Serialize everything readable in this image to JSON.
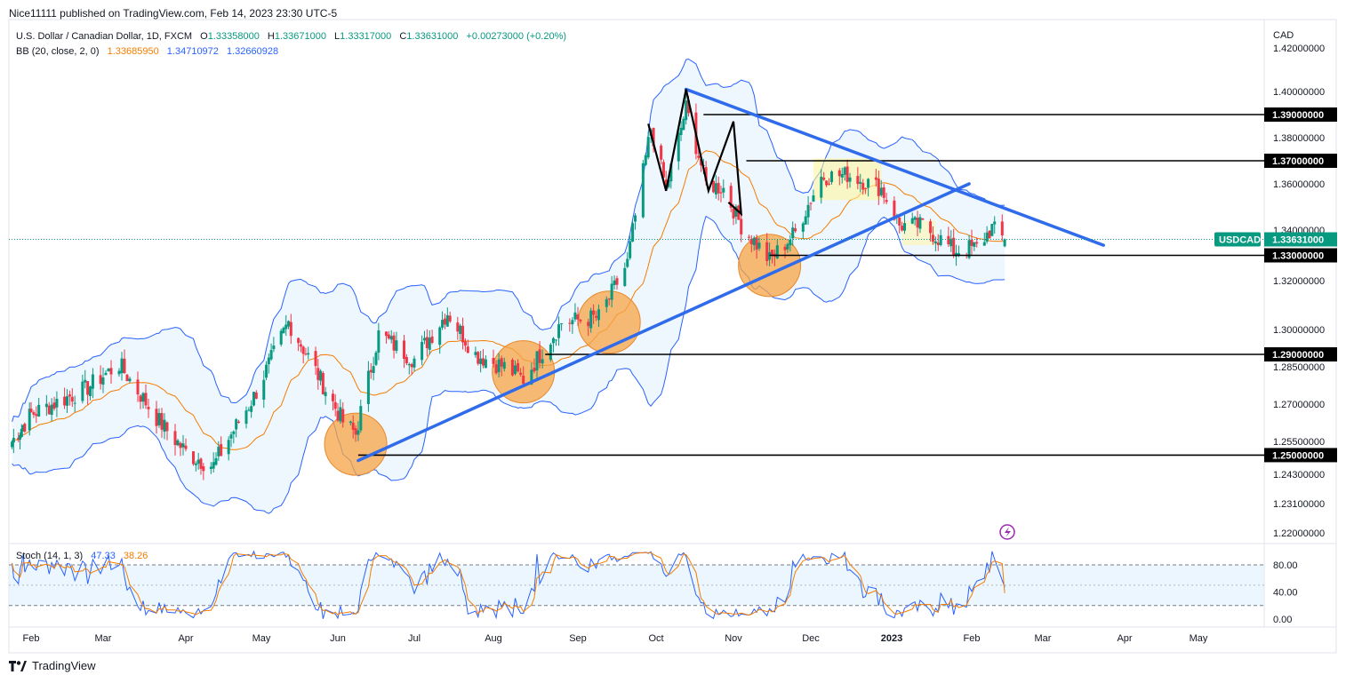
{
  "header": {
    "publisher": "Nice11111 published on TradingView.com, Feb 14, 2023 23:30 UTC-5"
  },
  "legend": {
    "symbol_line": "U.S. Dollar / Canadian Dollar, 1D, FXCM",
    "o_label": "O",
    "o_value": "1.33358000",
    "h_label": "H",
    "h_value": "1.33671000",
    "l_label": "L",
    "l_value": "1.33317000",
    "c_label": "C",
    "c_value": "1.33631000",
    "change": "+0.00273000 (+0.20%)",
    "bb_label": "BB (20, close, 2, 0)",
    "bb_basis": "1.33685950",
    "bb_upper": "1.34710972",
    "bb_lower": "1.32660928",
    "stoch_label": "Stoch (14, 1, 3)",
    "stoch_k": "47.33",
    "stoch_d": "38.26"
  },
  "price_axis": {
    "currency": "CAD",
    "ticks": [
      "1.42000000",
      "1.40000000",
      "1.38000000",
      "1.36000000",
      "1.34000000",
      "1.32000000",
      "1.30000000",
      "1.28500000",
      "1.27000000",
      "1.25500000",
      "1.24300000",
      "1.23100000",
      "1.22000000"
    ],
    "level_labels": [
      "1.39000000",
      "1.37000000",
      "1.33000000",
      "1.29000000",
      "1.25000000"
    ],
    "symbol_tag": "USDCAD",
    "last_price": "1.33631000"
  },
  "stoch_axis": {
    "ticks": [
      "80.00",
      "40.00",
      "0.00"
    ]
  },
  "time_axis": {
    "ticks": [
      "Feb",
      "Mar",
      "Apr",
      "May",
      "Jun",
      "Jul",
      "Aug",
      "Sep",
      "Oct",
      "Nov",
      "Dec",
      "2023",
      "Feb",
      "Mar",
      "Apr",
      "May"
    ]
  },
  "footer": {
    "brand": "TradingView"
  },
  "colors": {
    "up": "#089981",
    "down": "#f23645",
    "bb_basis": "#f57c00",
    "bb_band": "#2962ff",
    "bb_fill": "#e3f2fd",
    "trendline": "#2f6bea",
    "circle": "#f7a445",
    "stoch_k": "#2962ff",
    "stoch_d": "#f57c00",
    "level": "#000000",
    "tag": "#089981",
    "highlight": "#fff59d"
  },
  "chart_data": {
    "type": "candlestick",
    "title": "U.S. Dollar / Canadian Dollar, 1D, FXCM",
    "symbol": "USDCAD",
    "ylim": [
      1.215,
      1.425
    ],
    "x_ticks": [
      "Feb",
      "Mar",
      "Apr",
      "May",
      "Jun",
      "Jul",
      "Aug",
      "Sep",
      "Oct",
      "Nov",
      "Dec",
      "2023",
      "Feb",
      "Mar",
      "Apr",
      "May"
    ],
    "last_close": 1.33631,
    "path_keypoints": [
      [
        "2022-01-20",
        1.255
      ],
      [
        "2022-02-01",
        1.266
      ],
      [
        "2022-02-22",
        1.276
      ],
      [
        "2022-03-07",
        1.286
      ],
      [
        "2022-03-22",
        1.263
      ],
      [
        "2022-04-01",
        1.251
      ],
      [
        "2022-04-12",
        1.246
      ],
      [
        "2022-04-28",
        1.273
      ],
      [
        "2022-05-12",
        1.303
      ],
      [
        "2022-05-20",
        1.289
      ],
      [
        "2022-06-03",
        1.263
      ],
      [
        "2022-06-08",
        1.258
      ],
      [
        "2022-06-17",
        1.298
      ],
      [
        "2022-07-01",
        1.288
      ],
      [
        "2022-07-14",
        1.307
      ],
      [
        "2022-07-25",
        1.29
      ],
      [
        "2022-08-05",
        1.285
      ],
      [
        "2022-08-12",
        1.28
      ],
      [
        "2022-08-26",
        1.303
      ],
      [
        "2022-09-09",
        1.305
      ],
      [
        "2022-09-20",
        1.327
      ],
      [
        "2022-09-29",
        1.384
      ],
      [
        "2022-10-05",
        1.358
      ],
      [
        "2022-10-13",
        1.393
      ],
      [
        "2022-10-21",
        1.36
      ],
      [
        "2022-10-28",
        1.358
      ],
      [
        "2022-11-04",
        1.342
      ],
      [
        "2022-11-15",
        1.328
      ],
      [
        "2022-11-25",
        1.339
      ],
      [
        "2022-12-05",
        1.363
      ],
      [
        "2022-12-15",
        1.364
      ],
      [
        "2022-12-28",
        1.358
      ],
      [
        "2023-01-04",
        1.342
      ],
      [
        "2023-01-13",
        1.342
      ],
      [
        "2023-01-25",
        1.332
      ],
      [
        "2023-02-03",
        1.333
      ],
      [
        "2023-02-09",
        1.341
      ],
      [
        "2023-02-14",
        1.336
      ]
    ],
    "horizontal_levels": [
      1.39,
      1.37,
      1.33,
      1.29,
      1.25
    ],
    "descending_trendline": [
      [
        "2022-10-13",
        1.401
      ],
      [
        "2023-03-24",
        1.334
      ]
    ],
    "ascending_trendline": [
      [
        "2022-06-09",
        1.248
      ],
      [
        "2023-01-31",
        1.36
      ]
    ],
    "support_circles": [
      [
        "2022-06-08",
        1.254
      ],
      [
        "2022-08-12",
        1.283
      ],
      [
        "2022-09-13",
        1.303
      ],
      [
        "2022-11-15",
        1.326
      ]
    ],
    "bollinger": {
      "period": 20,
      "multiplier": 2,
      "basis": 1.3368595,
      "upper": 1.34710972,
      "lower": 1.32660928
    },
    "stochastic": {
      "k": 47.33,
      "d": 38.26,
      "upper_band": 80,
      "lower_band": 20,
      "ylim": [
        0,
        100
      ]
    }
  }
}
